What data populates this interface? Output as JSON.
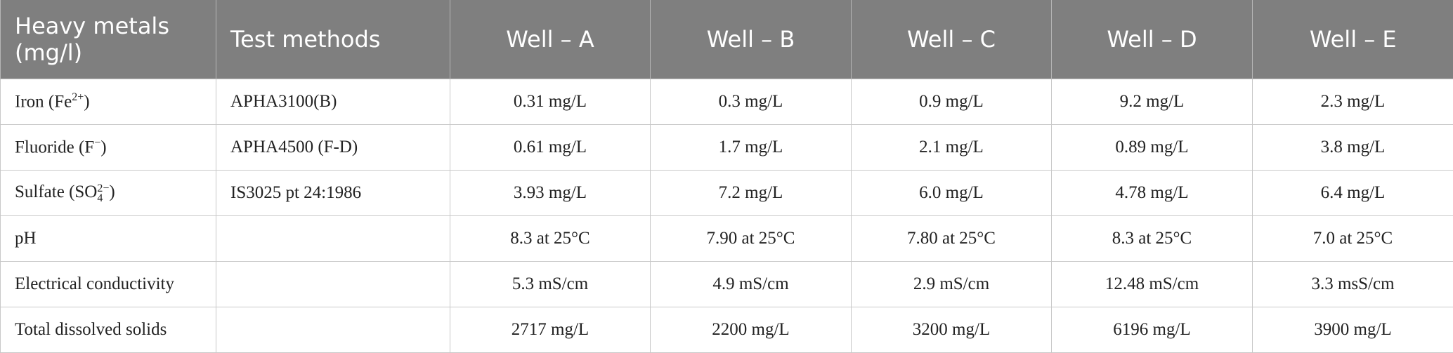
{
  "table": {
    "header": [
      "Heavy metals (mg/l)",
      "Test methods",
      "Well – A",
      "Well – B",
      "Well – C",
      "Well – D",
      "Well – E"
    ],
    "rows": [
      {
        "parameter": {
          "text": "Iron (Fe",
          "sup": "2+",
          "tail": ")"
        },
        "method": "APHA3100(B)",
        "values": [
          "0.31 mg/L",
          "0.3 mg/L",
          "0.9 mg/L",
          "9.2 mg/L",
          "2.3 mg/L"
        ]
      },
      {
        "parameter": {
          "text": "Fluoride (F",
          "sup": "−",
          "tail": ")"
        },
        "method": "APHA4500 (F-D)",
        "values": [
          "0.61 mg/L",
          "1.7 mg/L",
          "2.1 mg/L",
          "0.89 mg/L",
          "3.8 mg/L"
        ]
      },
      {
        "parameter": {
          "text": "Sulfate (SO",
          "sub": "4",
          "sup": "2−",
          "tail": ")"
        },
        "method": "IS3025 pt 24:1986",
        "values": [
          "3.93 mg/L",
          "7.2 mg/L",
          "6.0 mg/L",
          "4.78 mg/L",
          "6.4 mg/L"
        ]
      },
      {
        "parameter": {
          "text": "pH"
        },
        "method": null,
        "values": [
          "8.3 at 25°C",
          "7.90 at 25°C",
          "7.80 at 25°C",
          "8.3 at 25°C",
          "7.0 at 25°C"
        ]
      },
      {
        "parameter": {
          "text": "Electrical conductivity"
        },
        "method": null,
        "values": [
          "5.3 mS/cm",
          "4.9 mS/cm",
          "2.9 mS/cm",
          "12.48 mS/cm",
          "3.3 msS/cm"
        ]
      },
      {
        "parameter": {
          "text": "Total dissolved solids"
        },
        "method": null,
        "values": [
          "2717 mg/L",
          "2200 mg/L",
          "3200 mg/L",
          "6196 mg/L",
          "3900 mg/L"
        ]
      }
    ]
  }
}
